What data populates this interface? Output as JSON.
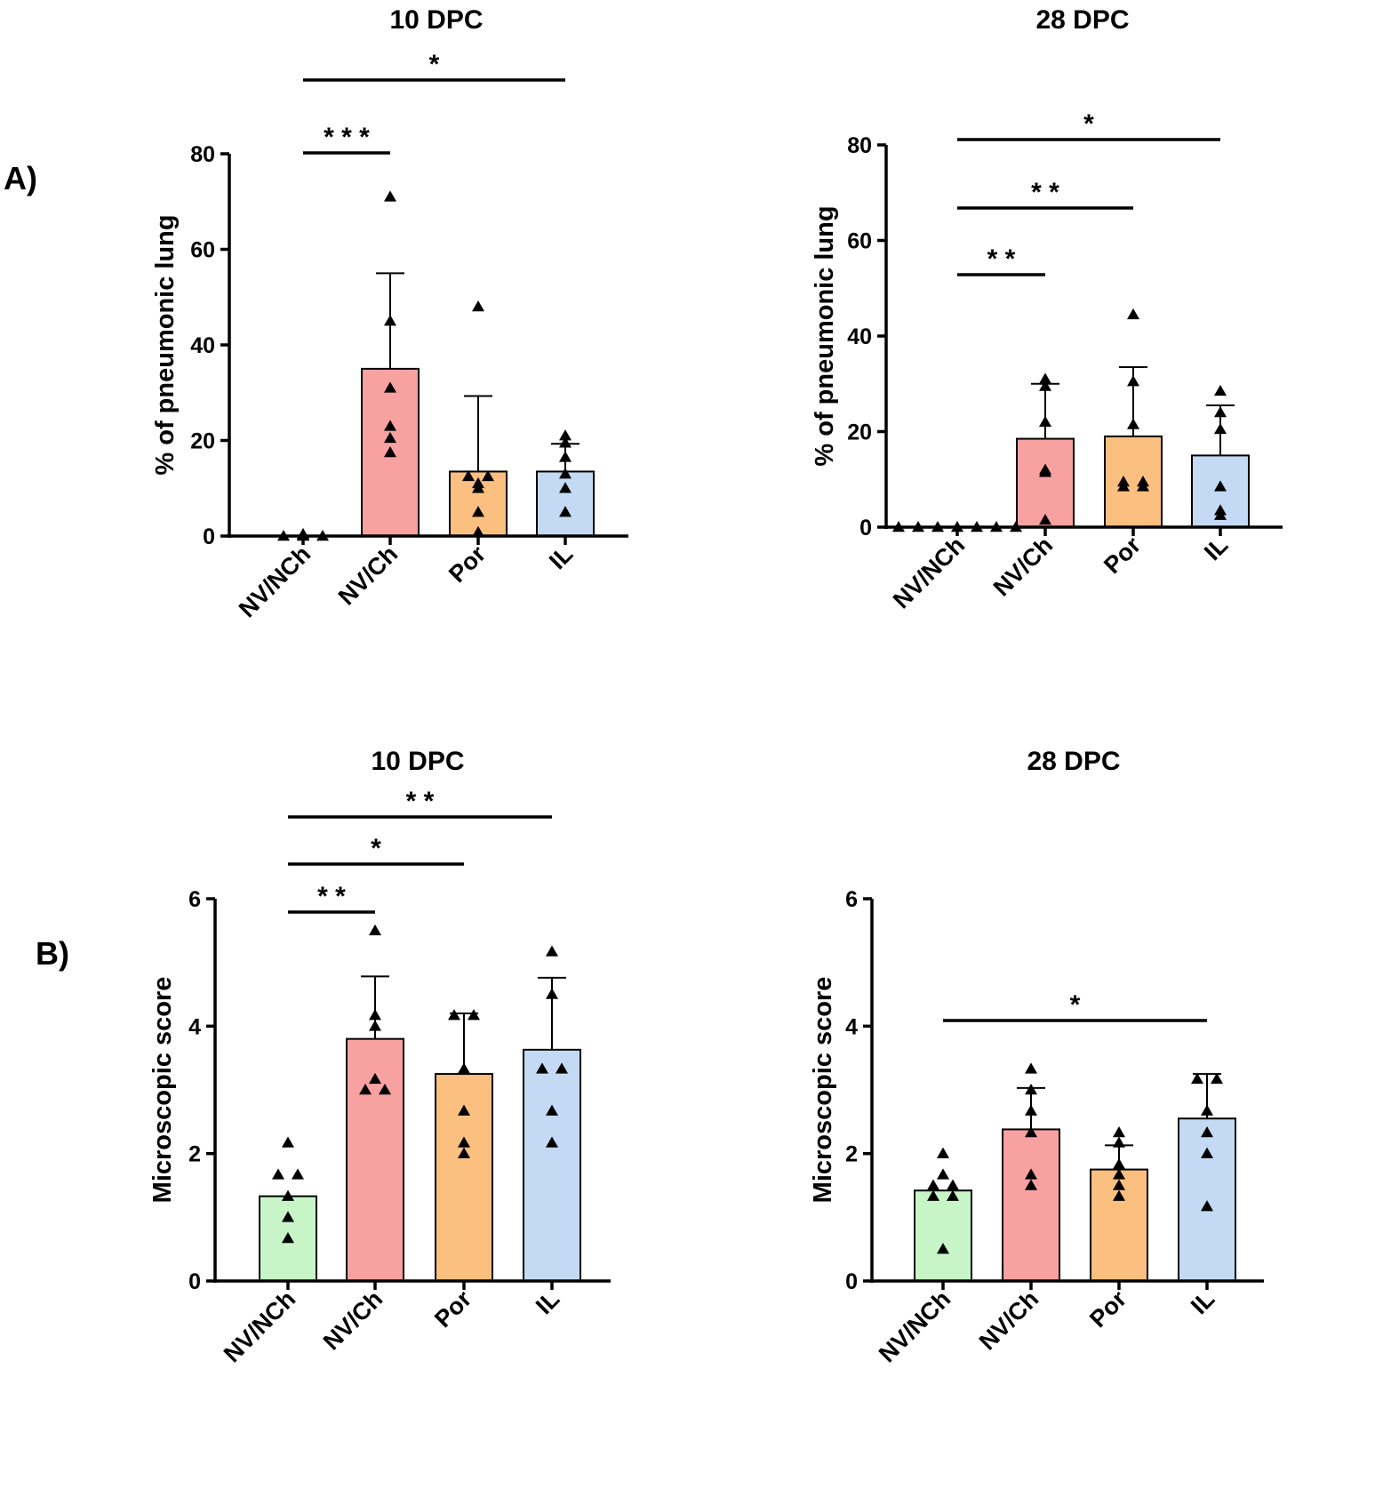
{
  "panel_labels": {
    "a": "A)",
    "b": "B)"
  },
  "colors": {
    "NV/NCh": "#c8f5c8",
    "NV/Ch": "#f8a1a1",
    "Por": "#fbbf80",
    "IL": "#c4daf4"
  },
  "chart_data": [
    {
      "id": "a10",
      "type": "bar",
      "title": "10 DPC",
      "ylabel": "% of pneumonic lung",
      "ylim": [
        0,
        80
      ],
      "yticks": [
        0,
        20,
        40,
        60,
        80
      ],
      "categories": [
        "NV/NCh",
        "NV/Ch",
        "Por",
        "IL"
      ],
      "means": [
        0,
        35,
        13.5,
        13.5
      ],
      "sd": [
        0,
        20,
        15.8,
        5.8
      ],
      "points": [
        [
          0,
          0.4,
          0,
          0.3,
          0,
          0.2
        ],
        [
          71,
          45,
          31,
          23,
          20.5,
          17.5
        ],
        [
          48,
          12.5,
          12.5,
          11,
          10,
          5,
          0.8
        ],
        [
          21,
          19.5,
          16.5,
          13,
          10,
          5
        ]
      ],
      "comparisons": [
        {
          "from": 0,
          "to": 1,
          "label": "* * *"
        },
        {
          "from": 0,
          "to": 3,
          "label": "*"
        }
      ]
    },
    {
      "id": "a28",
      "type": "bar",
      "title": "28 DPC",
      "ylabel": "% of pneumonic lung",
      "ylim": [
        0,
        80
      ],
      "yticks": [
        0,
        20,
        40,
        60,
        80
      ],
      "categories": [
        "NV/NCh",
        "NV/Ch",
        "Por",
        "IL"
      ],
      "means": [
        0,
        18.5,
        19,
        15
      ],
      "sd": [
        0,
        11.5,
        14.5,
        10.5
      ],
      "points": [
        [
          0,
          0,
          0,
          0,
          0,
          0,
          0
        ],
        [
          31,
          29.5,
          22,
          12,
          11.5,
          1.5
        ],
        [
          44.5,
          30.5,
          21.5,
          9.5,
          9.5,
          8.5,
          8.5
        ],
        [
          28.5,
          24,
          20.5,
          8.5,
          3.5,
          2.5
        ]
      ],
      "comparisons": [
        {
          "from": 0,
          "to": 1,
          "label": "* *"
        },
        {
          "from": 0,
          "to": 2,
          "label": "* *"
        },
        {
          "from": 0,
          "to": 3,
          "label": "*"
        }
      ]
    },
    {
      "id": "b10",
      "type": "bar",
      "title": "10 DPC",
      "ylabel": "Microscopic score",
      "ylim": [
        0,
        6
      ],
      "yticks": [
        0,
        2,
        4,
        6
      ],
      "categories": [
        "NV/NCh",
        "NV/Ch",
        "Por",
        "IL"
      ],
      "means": [
        1.33,
        3.8,
        3.25,
        3.63
      ],
      "sd": [
        0,
        0.98,
        0.95,
        1.13
      ],
      "points": [
        [
          2.17,
          1.67,
          1.67,
          1.33,
          1.0,
          0.67
        ],
        [
          5.5,
          4.17,
          4.0,
          3.17,
          3.0,
          3.0
        ],
        [
          4.17,
          4.17,
          3.33,
          2.67,
          2.17,
          2.0
        ],
        [
          5.17,
          4.5,
          3.33,
          3.33,
          2.67,
          2.17
        ]
      ],
      "comparisons": [
        {
          "from": 0,
          "to": 1,
          "label": "* *"
        },
        {
          "from": 0,
          "to": 2,
          "label": "*"
        },
        {
          "from": 0,
          "to": 3,
          "label": "* *"
        }
      ]
    },
    {
      "id": "b28",
      "type": "bar",
      "title": "28 DPC",
      "ylabel": "Microscopic score",
      "ylim": [
        0,
        6
      ],
      "yticks": [
        0,
        2,
        4,
        6
      ],
      "categories": [
        "NV/NCh",
        "NV/Ch",
        "Por",
        "IL"
      ],
      "means": [
        1.42,
        2.38,
        1.75,
        2.55
      ],
      "sd": [
        0,
        0.65,
        0.38,
        0.7
      ],
      "points": [
        [
          2.0,
          1.67,
          1.5,
          1.5,
          1.33,
          1.33,
          0.5
        ],
        [
          3.33,
          3.0,
          2.67,
          2.33,
          1.67,
          1.5
        ],
        [
          2.33,
          2.17,
          1.83,
          1.67,
          1.5,
          1.33
        ],
        [
          3.17,
          3.17,
          2.67,
          2.33,
          2.0,
          1.17
        ]
      ],
      "comparisons": [
        {
          "from": 0,
          "to": 3,
          "label": "*"
        }
      ]
    }
  ]
}
